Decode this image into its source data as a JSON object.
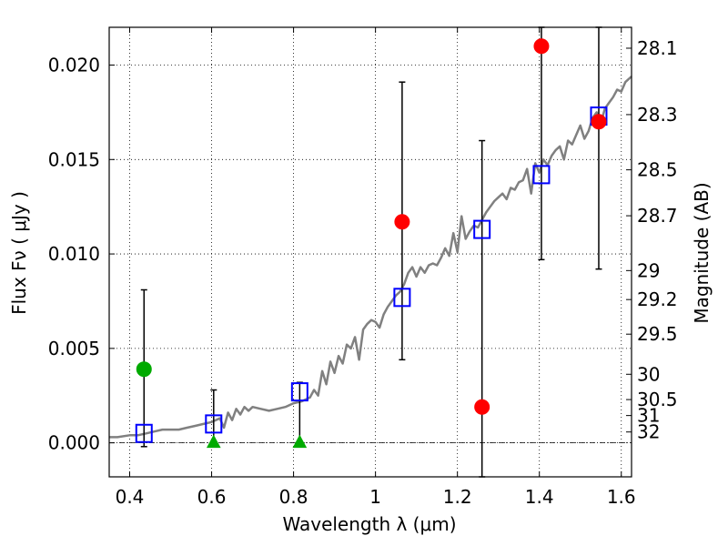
{
  "chart_data": {
    "type": "scatter",
    "xlabel": "Wavelength  λ (μm)",
    "ylabel": "Flux  Fν  ( μJy )",
    "y2label": "Magnitude (AB)",
    "xlim": [
      0.35,
      1.625
    ],
    "ylim": [
      -0.0018,
      0.022
    ],
    "grid": true,
    "x_ticks": [
      {
        "value": 0.4,
        "label": "0.4"
      },
      {
        "value": 0.6,
        "label": "0.6"
      },
      {
        "value": 0.8,
        "label": "0.8"
      },
      {
        "value": 1.0,
        "label": "1"
      },
      {
        "value": 1.2,
        "label": "1.2"
      },
      {
        "value": 1.4,
        "label": "1.4"
      },
      {
        "value": 1.6,
        "label": "1.6"
      }
    ],
    "y_ticks": [
      {
        "value": 0.0,
        "label": "0.000"
      },
      {
        "value": 0.005,
        "label": "0.005"
      },
      {
        "value": 0.01,
        "label": "0.010"
      },
      {
        "value": 0.015,
        "label": "0.015"
      },
      {
        "value": 0.02,
        "label": "0.020"
      }
    ],
    "mag_ticks": [
      {
        "mag": 28.1,
        "label": "28.1"
      },
      {
        "mag": 28.3,
        "label": "28.3"
      },
      {
        "mag": 28.5,
        "label": "28.5"
      },
      {
        "mag": 28.7,
        "label": "28.7"
      },
      {
        "mag": 29,
        "label": "29"
      },
      {
        "mag": 29.2,
        "label": "29.2"
      },
      {
        "mag": 29.5,
        "label": "29.5"
      },
      {
        "mag": 30,
        "label": "30"
      },
      {
        "mag": 30.5,
        "label": "30.5"
      },
      {
        "mag": 31,
        "label": "31"
      },
      {
        "mag": 32,
        "label": "32"
      }
    ],
    "spectrum": {
      "color": "#808080",
      "x": [
        0.35,
        0.37,
        0.4,
        0.42,
        0.44,
        0.46,
        0.48,
        0.5,
        0.52,
        0.54,
        0.56,
        0.58,
        0.6,
        0.61,
        0.62,
        0.63,
        0.64,
        0.65,
        0.66,
        0.67,
        0.68,
        0.69,
        0.7,
        0.72,
        0.74,
        0.76,
        0.78,
        0.8,
        0.82,
        0.84,
        0.85,
        0.86,
        0.87,
        0.88,
        0.89,
        0.9,
        0.91,
        0.92,
        0.93,
        0.94,
        0.95,
        0.96,
        0.97,
        0.98,
        0.99,
        1.0,
        1.01,
        1.02,
        1.03,
        1.04,
        1.05,
        1.06,
        1.07,
        1.08,
        1.09,
        1.1,
        1.11,
        1.12,
        1.13,
        1.14,
        1.15,
        1.16,
        1.17,
        1.18,
        1.19,
        1.2,
        1.21,
        1.22,
        1.23,
        1.24,
        1.25,
        1.26,
        1.27,
        1.28,
        1.29,
        1.3,
        1.31,
        1.32,
        1.33,
        1.34,
        1.35,
        1.36,
        1.37,
        1.38,
        1.39,
        1.4,
        1.41,
        1.42,
        1.43,
        1.44,
        1.45,
        1.46,
        1.47,
        1.48,
        1.49,
        1.5,
        1.51,
        1.52,
        1.53,
        1.54,
        1.55,
        1.56,
        1.57,
        1.58,
        1.59,
        1.6,
        1.61,
        1.625
      ],
      "y": [
        0.0003,
        0.0003,
        0.0004,
        0.0004,
        0.0005,
        0.0006,
        0.0007,
        0.0007,
        0.0007,
        0.0008,
        0.0009,
        0.001,
        0.0011,
        0.0012,
        0.0013,
        0.0008,
        0.0016,
        0.0012,
        0.0018,
        0.0015,
        0.0019,
        0.0017,
        0.0019,
        0.0018,
        0.0017,
        0.0018,
        0.0019,
        0.0021,
        0.0022,
        0.0024,
        0.0028,
        0.0025,
        0.0038,
        0.0031,
        0.0043,
        0.0037,
        0.0046,
        0.0042,
        0.0052,
        0.005,
        0.0056,
        0.0044,
        0.006,
        0.0063,
        0.0065,
        0.0064,
        0.0061,
        0.0068,
        0.0072,
        0.0075,
        0.0078,
        0.008,
        0.0084,
        0.009,
        0.0093,
        0.0088,
        0.0093,
        0.009,
        0.0094,
        0.0095,
        0.0094,
        0.0098,
        0.0103,
        0.0099,
        0.0111,
        0.0101,
        0.012,
        0.0108,
        0.0112,
        0.0115,
        0.0114,
        0.0118,
        0.0122,
        0.0125,
        0.0128,
        0.013,
        0.0132,
        0.0129,
        0.0135,
        0.0134,
        0.0138,
        0.0139,
        0.0145,
        0.0132,
        0.0148,
        0.0143,
        0.015,
        0.0147,
        0.0152,
        0.0155,
        0.0157,
        0.015,
        0.016,
        0.0158,
        0.0163,
        0.0168,
        0.0161,
        0.0165,
        0.0172,
        0.0175,
        0.0169,
        0.0177,
        0.018,
        0.0183,
        0.0187,
        0.0186,
        0.0191,
        0.0194
      ]
    },
    "series": [
      {
        "marker": "square",
        "color": "#0000ff",
        "points": [
          {
            "x": 0.435,
            "y": 0.0005
          },
          {
            "x": 0.605,
            "y": 0.001
          },
          {
            "x": 0.815,
            "y": 0.0027
          },
          {
            "x": 1.065,
            "y": 0.0077
          },
          {
            "x": 1.26,
            "y": 0.0113
          },
          {
            "x": 1.405,
            "y": 0.0142
          },
          {
            "x": 1.545,
            "y": 0.0173
          }
        ]
      },
      {
        "marker": "circle",
        "color": "#ff0000",
        "points": [
          {
            "x": 1.065,
            "y": 0.0117,
            "err_low": 0.0044,
            "err_high": 0.0191
          },
          {
            "x": 1.26,
            "y": 0.0019,
            "err_low": -0.0018,
            "err_high": 0.016
          },
          {
            "x": 1.405,
            "y": 0.021,
            "err_low": 0.0097,
            "err_high": 0.022
          },
          {
            "x": 1.545,
            "y": 0.017,
            "err_low": 0.0092,
            "err_high": 0.022
          }
        ]
      },
      {
        "marker": "circle",
        "color": "#00aa00",
        "points": [
          {
            "x": 0.435,
            "y": 0.0039,
            "err_low": -0.0002,
            "err_high": 0.0081
          }
        ]
      },
      {
        "marker": "triangle",
        "color": "#00aa00",
        "points": [
          {
            "x": 0.605,
            "y": 0.0,
            "err_low": -0.0002,
            "err_high": 0.0028
          },
          {
            "x": 0.815,
            "y": 0.0,
            "err_low": -0.0002,
            "err_high": 0.0032
          }
        ]
      }
    ]
  }
}
